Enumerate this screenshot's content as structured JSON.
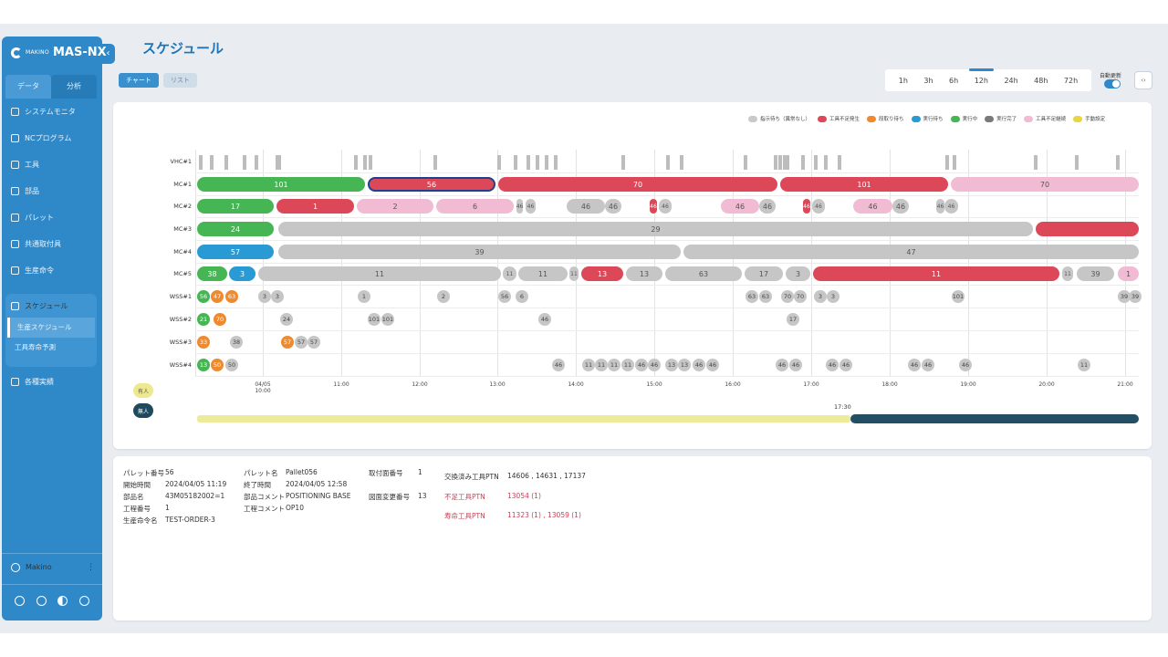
{
  "app": {
    "brand": "MAKINO",
    "product": "MAS-NX",
    "collapse_icon": "‹"
  },
  "sidebar": {
    "tabs": [
      "データ",
      "分析"
    ],
    "items": [
      "システムモニタ",
      "NCプログラム",
      "工具",
      "部品",
      "パレット",
      "共通取付具",
      "生産命令"
    ],
    "schedule_group": {
      "title": "スケジュール",
      "subitems": [
        "生産スケジュール",
        "工具寿命予測"
      ]
    },
    "last_item": "各種実績",
    "user": "Makino",
    "more_icon": "⋮"
  },
  "page": {
    "title": "スケジュール"
  },
  "view_buttons": [
    "チャート",
    "リスト"
  ],
  "time_range": {
    "options": [
      "1h",
      "3h",
      "6h",
      "12h",
      "24h",
      "48h",
      "72h"
    ],
    "selected": "12h"
  },
  "auto_update": {
    "label": "自動更新",
    "enabled": true
  },
  "code_button": "‹›",
  "legend": [
    {
      "label": "指示待ち（異常なし）",
      "color": "#c9c9c9"
    },
    {
      "label": "工具不足発生",
      "color": "#dd4858"
    },
    {
      "label": "段取り待ち",
      "color": "#ef8a2e"
    },
    {
      "label": "実行待ち",
      "color": "#2a9ad4"
    },
    {
      "label": "実行中",
      "color": "#45b653"
    },
    {
      "label": "実行完了",
      "color": "#7a7a7a"
    },
    {
      "label": "工具不足継続",
      "color": "#f1bcd3"
    },
    {
      "label": "手動設定",
      "color": "#e8d53f"
    }
  ],
  "chart_data": {
    "type": "gantt",
    "rows": [
      "VHC#1",
      "MC#1",
      "MC#2",
      "MC#3",
      "MC#4",
      "MC#5",
      "WSS#1",
      "WSS#2",
      "WSS#3",
      "WSS#4"
    ],
    "x_ticks": [
      "04/05 10:00",
      "11:00",
      "12:00",
      "13:00",
      "14:00",
      "15:00",
      "16:00",
      "17:00",
      "18:00",
      "19:00",
      "20:00",
      "21:00"
    ],
    "marker_label": "17:30",
    "mode_labels": [
      "有人",
      "無人"
    ],
    "bars": [
      {
        "row": "MC#1",
        "label": "101",
        "color": "green"
      },
      {
        "row": "MC#1",
        "label": "56",
        "color": "red",
        "selected": true
      },
      {
        "row": "MC#1",
        "label": "70",
        "color": "red"
      },
      {
        "row": "MC#1",
        "label": "101",
        "color": "red"
      },
      {
        "row": "MC#1",
        "label": "70",
        "color": "pink"
      },
      {
        "row": "MC#2",
        "label": "17",
        "color": "green"
      },
      {
        "row": "MC#2",
        "label": "1",
        "color": "red"
      },
      {
        "row": "MC#2",
        "label": "2",
        "color": "pink"
      },
      {
        "row": "MC#2",
        "label": "6",
        "color": "pink"
      },
      {
        "row": "MC#2",
        "label": "46",
        "color": "gray"
      },
      {
        "row": "MC#2",
        "label": "46",
        "color": "gray"
      },
      {
        "row": "MC#2",
        "label": "46",
        "color": "gray"
      },
      {
        "row": "MC#2",
        "label": "46",
        "color": "gray"
      },
      {
        "row": "MC#2",
        "label": "46",
        "color": "red"
      },
      {
        "row": "MC#2",
        "label": "46",
        "color": "gray"
      },
      {
        "row": "MC#2",
        "label": "46",
        "color": "pink"
      },
      {
        "row": "MC#2",
        "label": "46",
        "color": "gray"
      },
      {
        "row": "MC#2",
        "label": "46",
        "color": "red"
      },
      {
        "row": "MC#2",
        "label": "46",
        "color": "gray"
      },
      {
        "row": "MC#2",
        "label": "46",
        "color": "pink"
      },
      {
        "row": "MC#2",
        "label": "46",
        "color": "gray"
      },
      {
        "row": "MC#2",
        "label": "46",
        "color": "gray"
      },
      {
        "row": "MC#2",
        "label": "46",
        "color": "gray"
      },
      {
        "row": "MC#3",
        "label": "24",
        "color": "green"
      },
      {
        "row": "MC#3",
        "label": "29",
        "color": "gray"
      },
      {
        "row": "MC#3",
        "label": "",
        "color": "red"
      },
      {
        "row": "MC#4",
        "label": "57",
        "color": "blue"
      },
      {
        "row": "MC#4",
        "label": "39",
        "color": "gray"
      },
      {
        "row": "MC#4",
        "label": "47",
        "color": "gray"
      },
      {
        "row": "MC#5",
        "label": "38",
        "color": "green"
      },
      {
        "row": "MC#5",
        "label": "3",
        "color": "blue"
      },
      {
        "row": "MC#5",
        "label": "11",
        "color": "gray"
      },
      {
        "row": "MC#5",
        "label": "11",
        "color": "gray"
      },
      {
        "row": "MC#5",
        "label": "11",
        "color": "gray"
      },
      {
        "row": "MC#5",
        "label": "11",
        "color": "gray"
      },
      {
        "row": "MC#5",
        "label": "13",
        "color": "red"
      },
      {
        "row": "MC#5",
        "label": "13",
        "color": "gray"
      },
      {
        "row": "MC#5",
        "label": "63",
        "color": "gray"
      },
      {
        "row": "MC#5",
        "label": "17",
        "color": "gray"
      },
      {
        "row": "MC#5",
        "label": "3",
        "color": "gray"
      },
      {
        "row": "MC#5",
        "label": "11",
        "color": "red"
      },
      {
        "row": "MC#5",
        "label": "11",
        "color": "gray"
      },
      {
        "row": "MC#5",
        "label": "39",
        "color": "gray"
      },
      {
        "row": "MC#5",
        "label": "1",
        "color": "pink"
      }
    ],
    "wss": {
      "WSS#1": [
        {
          "label": "56",
          "color": "green"
        },
        {
          "label": "47",
          "color": "orange"
        },
        {
          "label": "63",
          "color": "orange"
        },
        {
          "label": "3",
          "color": "gray"
        },
        {
          "label": "3",
          "color": "gray"
        },
        {
          "label": "1",
          "color": "gray"
        },
        {
          "label": "2",
          "color": "gray"
        },
        {
          "label": "56",
          "color": "gray"
        },
        {
          "label": "6",
          "color": "gray"
        },
        {
          "label": "63",
          "color": "gray"
        },
        {
          "label": "63",
          "color": "gray"
        },
        {
          "label": "70",
          "color": "gray"
        },
        {
          "label": "70",
          "color": "gray"
        },
        {
          "label": "3",
          "color": "gray"
        },
        {
          "label": "3",
          "color": "gray"
        },
        {
          "label": "101",
          "color": "gray"
        },
        {
          "label": "39",
          "color": "gray"
        },
        {
          "label": "39",
          "color": "gray"
        }
      ],
      "WSS#2": [
        {
          "label": "21",
          "color": "green"
        },
        {
          "label": "70",
          "color": "orange"
        },
        {
          "label": "24",
          "color": "gray"
        },
        {
          "label": "101",
          "color": "gray"
        },
        {
          "label": "101",
          "color": "gray"
        },
        {
          "label": "46",
          "color": "gray"
        },
        {
          "label": "17",
          "color": "gray"
        }
      ],
      "WSS#3": [
        {
          "label": "33",
          "color": "orange"
        },
        {
          "label": "38",
          "color": "gray"
        },
        {
          "label": "57",
          "color": "orange"
        },
        {
          "label": "57",
          "color": "gray"
        },
        {
          "label": "57",
          "color": "gray"
        }
      ],
      "WSS#4": [
        {
          "label": "13",
          "color": "green"
        },
        {
          "label": "50",
          "color": "orange"
        },
        {
          "label": "50",
          "color": "gray"
        },
        {
          "label": "46",
          "color": "gray"
        },
        {
          "label": "11",
          "color": "gray"
        },
        {
          "label": "11",
          "color": "gray"
        },
        {
          "label": "11",
          "color": "gray"
        },
        {
          "label": "11",
          "color": "gray"
        },
        {
          "label": "46",
          "color": "gray"
        },
        {
          "label": "46",
          "color": "gray"
        },
        {
          "label": "13",
          "color": "gray"
        },
        {
          "label": "13",
          "color": "gray"
        },
        {
          "label": "46",
          "color": "gray"
        },
        {
          "label": "46",
          "color": "gray"
        },
        {
          "label": "46",
          "color": "gray"
        },
        {
          "label": "46",
          "color": "gray"
        },
        {
          "label": "46",
          "color": "gray"
        },
        {
          "label": "46",
          "color": "gray"
        },
        {
          "label": "46",
          "color": "gray"
        },
        {
          "label": "46",
          "color": "gray"
        },
        {
          "label": "46",
          "color": "gray"
        },
        {
          "label": "11",
          "color": "gray"
        }
      ]
    }
  },
  "details": {
    "pallet_no_label": "パレット番号",
    "pallet_no": "56",
    "start_label": "開始時間",
    "start": "2024/04/05 11:19",
    "part_name_label": "部品名",
    "part_name": "43M05182002=1",
    "process_no_label": "工程番号",
    "process_no": "1",
    "order_label": "生産命令名",
    "order": "TEST-ORDER-3",
    "pallet_name_label": "パレット名",
    "pallet_name": "Pallet056",
    "end_label": "終了時間",
    "end": "2024/04/05 12:58",
    "part_comment_label": "部品コメント",
    "part_comment": "POSITIONING BASE",
    "process_comment_label": "工程コメント",
    "process_comment": "OP10",
    "fixture_label": "取付面番号",
    "fixture": "1",
    "drawing_label": "図面変更番号",
    "drawing": "13",
    "exchanged_label": "交換済み工具PTN",
    "exchanged": "14606 , 14631 , 17137",
    "missing_label": "不足工具PTN",
    "missing": "13054 (1)",
    "life_label": "寿命工具PTN",
    "life": "11323 (1) , 13059 (1)"
  }
}
